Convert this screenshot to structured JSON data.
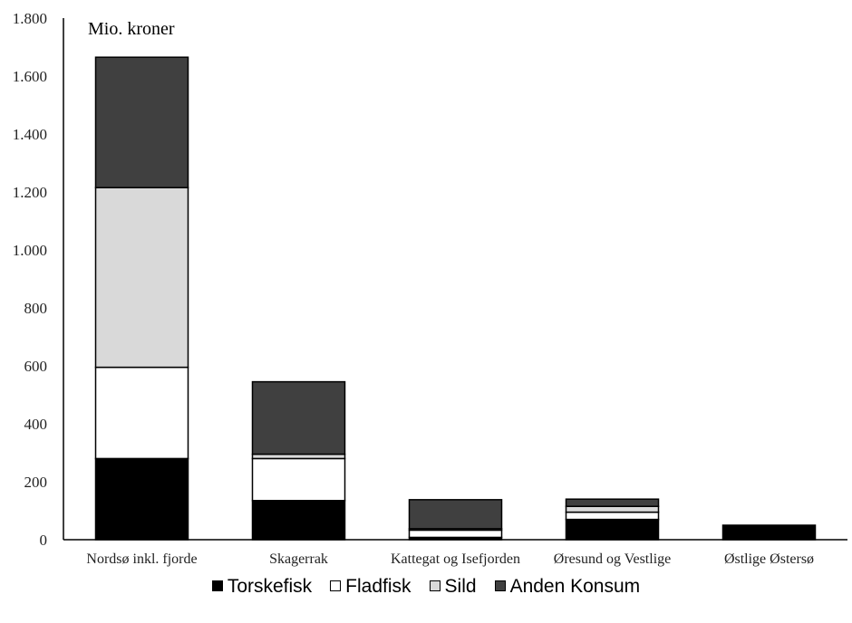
{
  "chart_data": {
    "type": "bar",
    "stacked": true,
    "unit_label": "Mio. kroner",
    "categories": [
      "Nordsø inkl. fjorde",
      "Skagerrak",
      "Kattegat og Isefjorden",
      "Øresund og Vestlige Østersø",
      "Østlige Østersø"
    ],
    "category_lines": [
      [
        "Nordsø inkl. fjorde"
      ],
      [
        "Skagerrak"
      ],
      [
        "Kattegat og Isefjorden"
      ],
      [
        "Øresund og Vestlige",
        "Østersø"
      ],
      [
        "Østlige Østersø"
      ]
    ],
    "series": [
      {
        "name": "Torskefisk",
        "color": "#000000",
        "values": [
          280,
          135,
          8,
          70,
          50
        ]
      },
      {
        "name": "Fladfisk",
        "color": "#ffffff",
        "values": [
          315,
          145,
          25,
          25,
          0
        ]
      },
      {
        "name": "Sild",
        "color": "#d9d9d9",
        "values": [
          620,
          15,
          5,
          20,
          0
        ]
      },
      {
        "name": "Anden Konsum",
        "color": "#404040",
        "values": [
          450,
          250,
          100,
          25,
          0
        ]
      }
    ],
    "ylim": [
      0,
      1800
    ],
    "yticks": [
      0,
      200,
      400,
      600,
      800,
      1000,
      1200,
      1400,
      1600,
      1800
    ],
    "ytick_labels": [
      "0",
      "200",
      "400",
      "600",
      "800",
      "1.000",
      "1.200",
      "1.400",
      "1.600",
      "1.800"
    ],
    "grid": false,
    "legend_position": "bottom"
  }
}
